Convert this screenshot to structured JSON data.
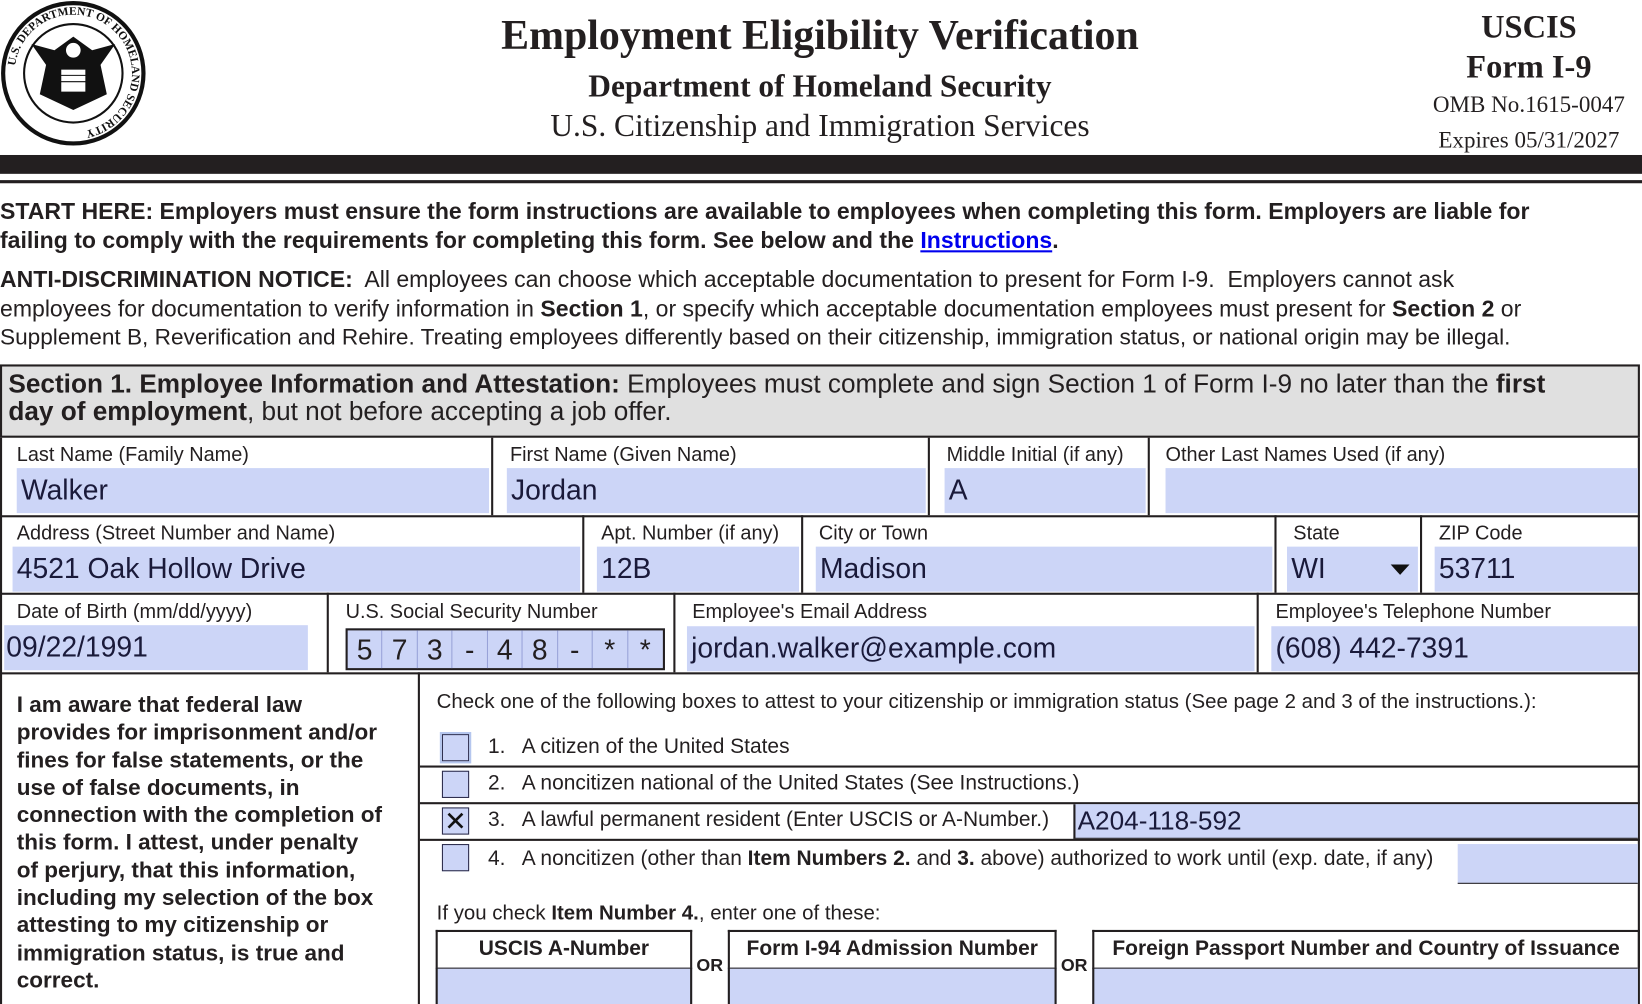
{
  "header": {
    "title": "Employment Eligibility Verification",
    "department": "Department of Homeland Security",
    "agency": "U.S. Citizenship and Immigration Services",
    "agency_short": "USCIS",
    "form_name": "Form I-9",
    "omb": "OMB No.1615-0047",
    "expires": "Expires 05/31/2027",
    "seal_text": "U.S. DEPARTMENT OF HOMELAND SECURITY"
  },
  "start_here": {
    "line1": "START HERE:  Employers must ensure the form instructions are available to employees when completing this form.  Employers are liable for",
    "line2_pre": "failing to comply with the requirements for completing this form.  See below and the ",
    "link": "Instructions",
    "line2_post": "."
  },
  "anti_discrimination": {
    "heading": "ANTI-DISCRIMINATION NOTICE:",
    "l1": "  All employees can choose which acceptable documentation to present for Form I-9.  Employers cannot ask",
    "l2a": "employees for documentation to verify information in ",
    "l2b": "Section 1",
    "l2c": ", or specify which acceptable documentation employees must present for ",
    "l2d": "Section 2",
    "l2e": " or",
    "l3": "Supplement B, Reverification and Rehire.  Treating employees differently based on their citizenship, immigration status, or national origin may be illegal."
  },
  "section1": {
    "heading": "Section 1. Employee Information and Attestation:",
    "text1": " Employees must complete and sign Section 1 of Form I-9 no later than the ",
    "bold1": "first",
    "bold2": "day of employment",
    "text2": ", but not before accepting a job offer."
  },
  "fields": {
    "last_name": {
      "label": "Last Name (Family Name)",
      "value": "Walker"
    },
    "first_name": {
      "label": "First Name (Given Name)",
      "value": "Jordan"
    },
    "middle_initial": {
      "label": "Middle Initial (if any)",
      "value": "A"
    },
    "other_names": {
      "label": "Other Last Names Used (if any)",
      "value": ""
    },
    "address": {
      "label": "Address (Street Number and Name)",
      "value": "4521 Oak Hollow Drive"
    },
    "apt": {
      "label": "Apt. Number (if any)",
      "value": "12B"
    },
    "city": {
      "label": "City or Town",
      "value": "Madison"
    },
    "state": {
      "label": "State",
      "value": "WI"
    },
    "zip": {
      "label": "ZIP Code",
      "value": "53711"
    },
    "dob": {
      "label": "Date of Birth (mm/dd/yyyy)",
      "value": "09/22/1991"
    },
    "ssn": {
      "label": "U.S. Social Security Number",
      "digits": [
        "5",
        "7",
        "3",
        "-",
        "4",
        "8",
        "-",
        "*",
        "*"
      ]
    },
    "email": {
      "label": "Employee's Email Address",
      "value": "jordan.walker@example.com"
    },
    "phone": {
      "label": "Employee's Telephone Number",
      "value": "(608) 442-7391"
    }
  },
  "attestation": {
    "statement": [
      "I am aware that federal law",
      "provides for imprisonment and/or",
      "fines for false statements, or the",
      "use of false documents, in",
      "connection with the completion of",
      "this form.  I attest, under penalty",
      "of perjury, that this information,",
      "including my selection of the box",
      "attesting to my citizenship or",
      "immigration status, is true and",
      "correct."
    ],
    "instruction": "Check one of the following boxes to attest to your citizenship or immigration status (See page 2 and 3 of the instructions.):",
    "options": [
      {
        "num": "1.",
        "text": "A citizen of the United States",
        "checked": false
      },
      {
        "num": "2.",
        "text": "A noncitizen national of the United States (See Instructions.)",
        "checked": false
      },
      {
        "num": "3.",
        "text": "A lawful permanent resident (Enter USCIS or A-Number.)",
        "checked": true,
        "value": "A204-118-592"
      },
      {
        "num": "4.",
        "text_a": "A noncitizen (other than ",
        "bold_a": "Item Numbers 2.",
        "text_b": " and ",
        "bold_b": "3.",
        "text_c": " above) authorized to work until (exp. date, if any)",
        "checked": false,
        "value": ""
      }
    ],
    "check_mark": "✕",
    "if_check_pre": "If you check ",
    "if_check_bold": "Item Number 4.",
    "if_check_post": ", enter one of these:",
    "alt_fields": [
      {
        "label": "USCIS A-Number",
        "value": ""
      },
      {
        "label": "Form I-94 Admission Number",
        "value": ""
      },
      {
        "label": "Foreign Passport Number and Country of Issuance",
        "value": ""
      }
    ],
    "or": "OR"
  },
  "colors": {
    "field_bg": "#ccd5f7",
    "link": "#0000ee",
    "section_bg": "#e0e0e0"
  }
}
